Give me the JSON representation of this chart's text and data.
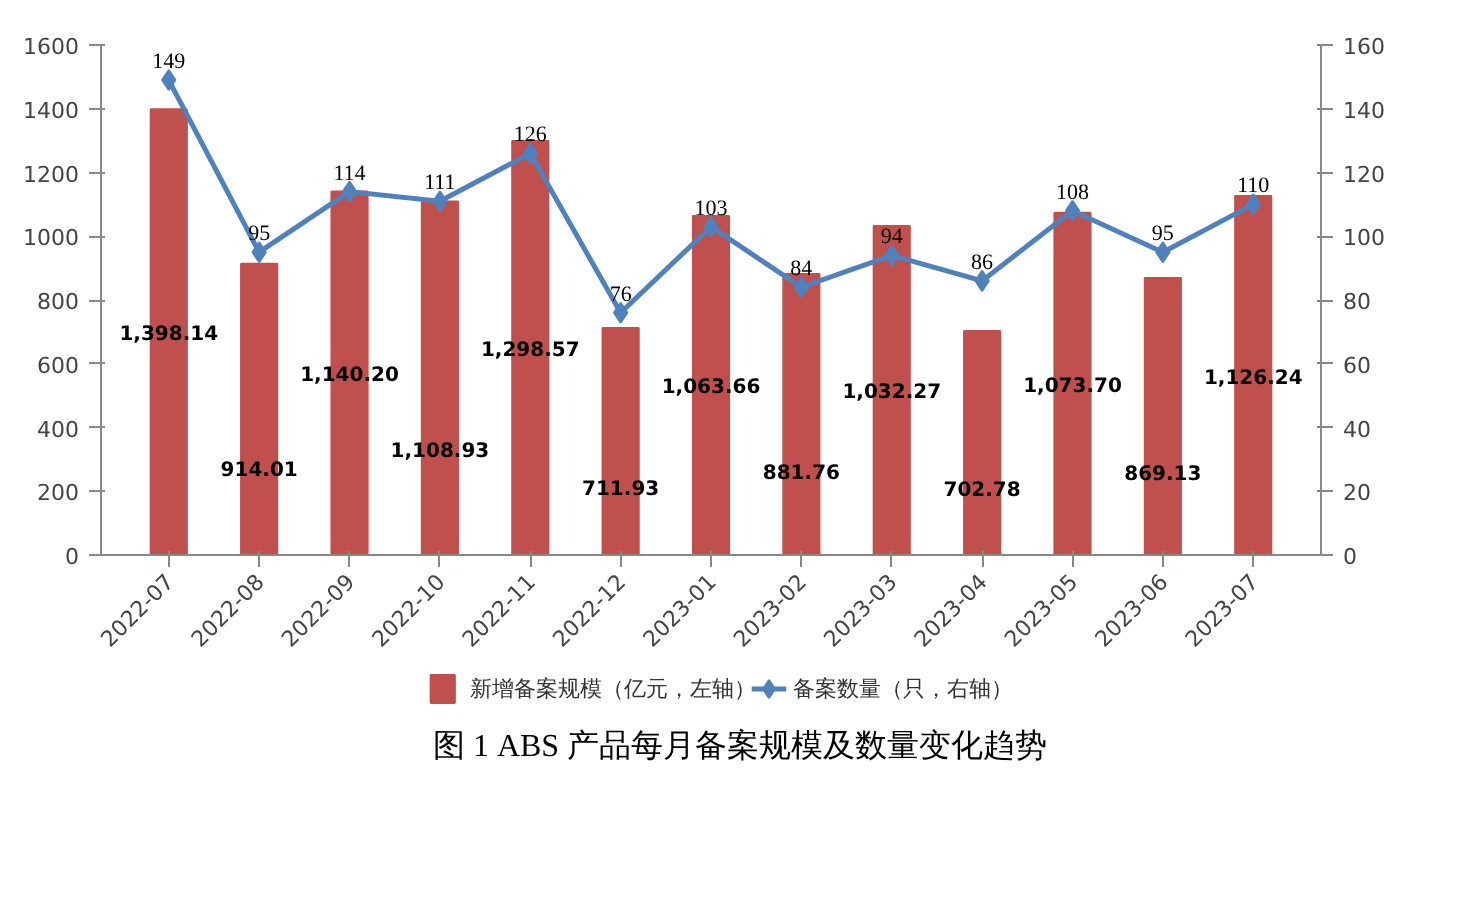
{
  "chart_data": {
    "type": "bar",
    "title": "图 1  ABS 产品每月备案规模及数量变化趋势",
    "categories": [
      "2022-07",
      "2022-08",
      "2022-09",
      "2022-10",
      "2022-11",
      "2022-12",
      "2023-01",
      "2023-02",
      "2023-03",
      "2023-04",
      "2023-05",
      "2023-06",
      "2023-07"
    ],
    "series": [
      {
        "name": "新增备案规模（亿元，左轴）",
        "color": "#c0504d",
        "values": [
          1398.14,
          914.01,
          1140.2,
          1108.93,
          1298.57,
          711.93,
          1063.66,
          881.76,
          1032.27,
          702.78,
          1073.7,
          869.13,
          1126.24
        ],
        "value_labels": [
          "1,398.14",
          "914.01",
          "1,140.20",
          "1,108.93",
          "1,298.57",
          "711.93",
          "1,063.66",
          "881.76",
          "1,032.27",
          "702.78",
          "1,073.70",
          "869.13",
          "1,126.24"
        ]
      },
      {
        "name": "备案数量（只，右轴）",
        "type": "line",
        "axis": "y2",
        "color": "#4f81bd",
        "marker": "diamond",
        "values": [
          149,
          95,
          114,
          111,
          126,
          76,
          103,
          84,
          94,
          86,
          108,
          95,
          110
        ],
        "value_labels": [
          "149",
          "95",
          "114",
          "111",
          "126",
          "76",
          "103",
          "84",
          "94",
          "86",
          "108",
          "95",
          "110"
        ]
      }
    ],
    "ylim": [
      0,
      1600
    ],
    "yticks": [
      0,
      200,
      400,
      600,
      800,
      1000,
      1200,
      1400,
      1600
    ],
    "y2lim": [
      0,
      160
    ],
    "y2ticks": [
      0,
      20,
      40,
      60,
      80,
      100,
      120,
      140,
      160
    ],
    "grid": false,
    "legend": "bottom"
  }
}
